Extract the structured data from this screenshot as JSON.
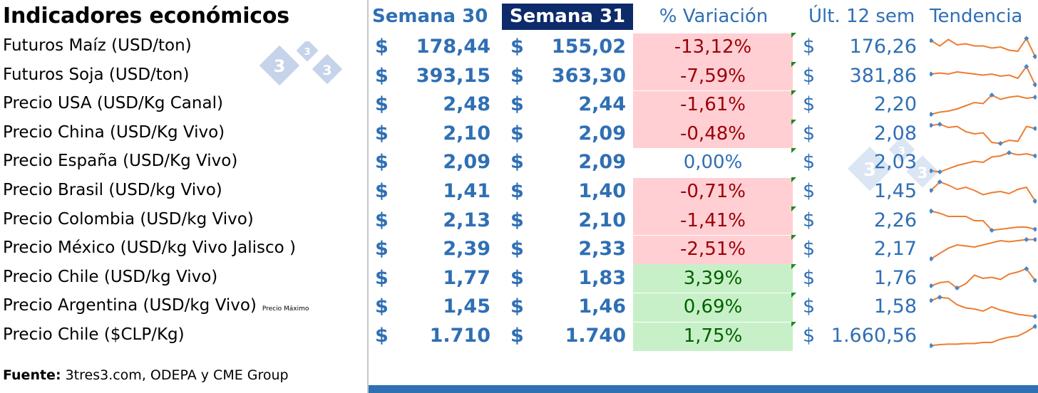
{
  "title": "Indicadores económicos",
  "headers": {
    "semana30": "Semana 30",
    "semana31": "Semana 31",
    "variacion": "% Variación",
    "ult12": "Últ. 12 sem",
    "tendencia": "Tendencia"
  },
  "currency_symbol": "$",
  "rows": [
    {
      "label": "Futuros Maíz (USD/ton)",
      "s30": "178,44",
      "s31": "155,02",
      "var": "-13,12%",
      "ult12": "176,26",
      "trend": [
        0.8,
        0.55,
        0.85,
        0.6,
        0.65,
        0.55,
        0.55,
        0.45,
        0.5,
        0.35,
        0.3,
        0.9,
        0.05
      ]
    },
    {
      "label": "Futuros Soja (USD/ton)",
      "s30": "393,15",
      "s31": "363,30",
      "var": "-7,59%",
      "ult12": "381,86",
      "trend": [
        0.6,
        0.65,
        0.6,
        0.7,
        0.65,
        0.6,
        0.55,
        0.6,
        0.5,
        0.55,
        0.4,
        0.95,
        0.1
      ]
    },
    {
      "label": "Precio USA (USD/Kg Canal)",
      "s30": "2,48",
      "s31": "2,44",
      "var": "-1,61%",
      "ult12": "2,20",
      "trend": [
        0.05,
        0.15,
        0.2,
        0.3,
        0.45,
        0.6,
        0.55,
        0.95,
        0.75,
        0.85,
        0.9,
        0.8,
        0.85
      ]
    },
    {
      "label": "Precio China (USD/Kg Vivo)",
      "s30": "2,10",
      "s31": "2,09",
      "var": "-0,48%",
      "ult12": "2,08",
      "trend": [
        0.9,
        0.95,
        0.8,
        0.85,
        0.6,
        0.5,
        0.55,
        0.1,
        0.05,
        0.2,
        0.15,
        0.85,
        0.75
      ]
    },
    {
      "label": "Precio España (USD/Kg Vivo)",
      "s30": "2,09",
      "s31": "2,09",
      "var": "0,00%",
      "ult12": "2,03",
      "trend": [
        0.1,
        0.05,
        0.2,
        0.35,
        0.45,
        0.55,
        0.5,
        0.75,
        0.8,
        0.95,
        0.85,
        0.9,
        0.8
      ]
    },
    {
      "label": "Precio  Brasil (USD/kg Vivo)",
      "s30": "1,41",
      "s31": "1,40",
      "var": "-0,71%",
      "ult12": "1,45",
      "trend": [
        0.55,
        0.95,
        0.8,
        0.6,
        0.7,
        0.55,
        0.35,
        0.45,
        0.5,
        0.4,
        0.6,
        0.7,
        0.05
      ]
    },
    {
      "label": "Precio Colombia (USD/kg Vivo)",
      "s30": "2,13",
      "s31": "2,10",
      "var": "-1,41%",
      "ult12": "2,26",
      "trend": [
        0.95,
        0.85,
        0.7,
        0.7,
        0.7,
        0.5,
        0.5,
        0.05,
        0.1,
        0.15,
        0.2,
        0.2,
        0.1
      ]
    },
    {
      "label": "Precio México (USD/kg Vivo Jalisco )",
      "s30": "2,39",
      "s31": "2,33",
      "var": "-2,51%",
      "ult12": "2,17",
      "trend": [
        0.05,
        0.3,
        0.55,
        0.7,
        0.65,
        0.6,
        0.7,
        0.8,
        0.9,
        0.85,
        0.9,
        0.95,
        0.95
      ]
    },
    {
      "label": "Precio Chile (USD/kg Vivo)",
      "s30": "1,77",
      "s31": "1,83",
      "var": "3,39%",
      "ult12": "1,76",
      "trend": [
        0.15,
        0.3,
        0.35,
        0.05,
        0.25,
        0.65,
        0.5,
        0.55,
        0.45,
        0.7,
        0.8,
        0.95,
        0.4
      ]
    },
    {
      "label": "Precio Argentina (USD/kg Vivo)",
      "note": "Precio Máximo",
      "s30": "1,45",
      "s31": "1,46",
      "var": "0,69%",
      "ult12": "1,58",
      "trend": [
        0.8,
        0.95,
        0.9,
        0.6,
        0.45,
        0.4,
        0.3,
        0.5,
        0.35,
        0.25,
        0.15,
        0.1,
        0.05
      ]
    },
    {
      "label": "Precio Chile ($CLP/Kg)",
      "s30": "1.710",
      "s31": "1.740",
      "var": "1,75%",
      "ult12": "1.660,56",
      "trend": [
        0.05,
        0.1,
        0.12,
        0.12,
        0.15,
        0.15,
        0.2,
        0.2,
        0.35,
        0.45,
        0.5,
        0.7,
        0.95
      ]
    }
  ],
  "source": {
    "label": "Fuente:",
    "text": " 3tres3.com, ODEPA y CME Group"
  },
  "watermark": "3",
  "colors": {
    "blue": "#2f6fb4",
    "navy": "#0d2a6b",
    "red_fill": "#ffcfd3",
    "red_text": "#9c0006",
    "green_fill": "#c8f0c8",
    "green_text": "#006100",
    "spark_line": "#ed7d31",
    "spark_marker": "#4a86c8"
  }
}
